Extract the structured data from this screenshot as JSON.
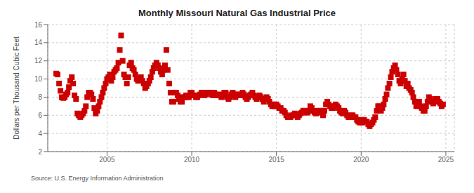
{
  "chart_data": {
    "type": "scatter",
    "title": "Monthly Missouri Natural Gas Industrial Price",
    "y_label": "Dollars per Thousand Cubic Feet",
    "annotations": [
      "Source: U.S. Energy Information Administration"
    ],
    "color": "#CC0000",
    "marker": "square",
    "grid": true,
    "xlim": [
      2001.5,
      2025.5
    ],
    "xticks": [
      2005,
      2010,
      2015,
      2020,
      2025
    ],
    "ylim": [
      2,
      16
    ],
    "yticks": [
      2,
      4,
      6,
      8,
      10,
      12,
      14,
      16
    ],
    "x": [
      2002.0,
      2002.08,
      2002.17,
      2002.25,
      2002.33,
      2002.42,
      2002.5,
      2002.58,
      2002.67,
      2002.75,
      2002.83,
      2002.92,
      2003.0,
      2003.08,
      2003.17,
      2003.25,
      2003.33,
      2003.42,
      2003.5,
      2003.58,
      2003.67,
      2003.75,
      2003.83,
      2003.92,
      2004.0,
      2004.08,
      2004.17,
      2004.25,
      2004.33,
      2004.42,
      2004.5,
      2004.58,
      2004.67,
      2004.75,
      2004.83,
      2004.92,
      2005.0,
      2005.08,
      2005.17,
      2005.25,
      2005.33,
      2005.42,
      2005.5,
      2005.58,
      2005.67,
      2005.75,
      2005.83,
      2005.92,
      2006.0,
      2006.08,
      2006.17,
      2006.25,
      2006.33,
      2006.42,
      2006.5,
      2006.58,
      2006.67,
      2006.75,
      2006.83,
      2006.92,
      2007.0,
      2007.08,
      2007.17,
      2007.25,
      2007.33,
      2007.42,
      2007.5,
      2007.58,
      2007.67,
      2007.75,
      2007.83,
      2007.92,
      2008.0,
      2008.08,
      2008.17,
      2008.25,
      2008.33,
      2008.42,
      2008.5,
      2008.58,
      2008.67,
      2008.75,
      2008.83,
      2008.92,
      2009.0,
      2009.08,
      2009.17,
      2009.25,
      2009.33,
      2009.42,
      2009.5,
      2009.58,
      2009.67,
      2009.75,
      2009.83,
      2009.92,
      2010.0,
      2010.08,
      2010.17,
      2010.25,
      2010.33,
      2010.42,
      2010.5,
      2010.58,
      2010.67,
      2010.75,
      2010.83,
      2010.92,
      2011.0,
      2011.08,
      2011.17,
      2011.25,
      2011.33,
      2011.42,
      2011.5,
      2011.58,
      2011.67,
      2011.75,
      2011.83,
      2011.92,
      2012.0,
      2012.08,
      2012.17,
      2012.25,
      2012.33,
      2012.42,
      2012.5,
      2012.58,
      2012.67,
      2012.75,
      2012.83,
      2012.92,
      2013.0,
      2013.08,
      2013.17,
      2013.25,
      2013.33,
      2013.42,
      2013.5,
      2013.58,
      2013.67,
      2013.75,
      2013.83,
      2013.92,
      2014.0,
      2014.08,
      2014.17,
      2014.25,
      2014.33,
      2014.42,
      2014.5,
      2014.58,
      2014.67,
      2014.75,
      2014.83,
      2014.92,
      2015.0,
      2015.08,
      2015.17,
      2015.25,
      2015.33,
      2015.42,
      2015.5,
      2015.58,
      2015.67,
      2015.75,
      2015.83,
      2015.92,
      2016.0,
      2016.08,
      2016.17,
      2016.25,
      2016.33,
      2016.42,
      2016.5,
      2016.58,
      2016.67,
      2016.75,
      2016.83,
      2016.92,
      2017.0,
      2017.08,
      2017.17,
      2017.25,
      2017.33,
      2017.42,
      2017.5,
      2017.58,
      2017.67,
      2017.75,
      2017.83,
      2017.92,
      2018.0,
      2018.08,
      2018.17,
      2018.25,
      2018.33,
      2018.42,
      2018.5,
      2018.58,
      2018.67,
      2018.75,
      2018.83,
      2018.92,
      2019.0,
      2019.08,
      2019.17,
      2019.25,
      2019.33,
      2019.42,
      2019.5,
      2019.58,
      2019.67,
      2019.75,
      2019.83,
      2019.92,
      2020.0,
      2020.08,
      2020.17,
      2020.25,
      2020.33,
      2020.42,
      2020.5,
      2020.58,
      2020.67,
      2020.75,
      2020.83,
      2020.92,
      2021.0,
      2021.08,
      2021.17,
      2021.25,
      2021.33,
      2021.42,
      2021.5,
      2021.58,
      2021.67,
      2021.75,
      2021.83,
      2021.92,
      2022.0,
      2022.08,
      2022.17,
      2022.25,
      2022.33,
      2022.42,
      2022.5,
      2022.58,
      2022.67,
      2022.75,
      2022.83,
      2022.92,
      2023.0,
      2023.08,
      2023.17,
      2023.25,
      2023.33,
      2023.42,
      2023.5,
      2023.58,
      2023.67,
      2023.75,
      2023.83,
      2023.92,
      2024.0,
      2024.08,
      2024.17,
      2024.25,
      2024.33,
      2024.42,
      2024.5,
      2024.58,
      2024.67,
      2024.75,
      2024.83
    ],
    "values": [
      10.6,
      10.5,
      9.5,
      8.7,
      8.0,
      7.9,
      8.0,
      8.3,
      8.5,
      9.1,
      9.8,
      10.2,
      9.5,
      8.2,
      7.8,
      6.2,
      6.0,
      5.8,
      6.0,
      6.2,
      6.5,
      7.0,
      8.0,
      8.5,
      8.5,
      8.3,
      7.8,
      6.8,
      6.2,
      6.5,
      7.0,
      7.5,
      8.0,
      8.5,
      9.0,
      9.5,
      10.0,
      10.2,
      10.5,
      9.8,
      10.2,
      10.8,
      11.0,
      11.2,
      11.8,
      13.2,
      14.8,
      12.0,
      10.5,
      10.2,
      9.5,
      10.2,
      11.5,
      11.8,
      11.2,
      11.0,
      10.5,
      10.0,
      9.8,
      10.0,
      10.2,
      9.8,
      9.5,
      9.0,
      9.2,
      9.5,
      9.8,
      10.2,
      10.8,
      11.2,
      11.5,
      11.8,
      11.5,
      11.2,
      10.8,
      10.5,
      11.0,
      11.5,
      13.2,
      11.0,
      9.5,
      8.5,
      7.5,
      7.5,
      8.5,
      8.5,
      8.2,
      7.8,
      7.5,
      7.5,
      8.0,
      8.0,
      8.2,
      8.0,
      8.0,
      8.5,
      8.5,
      8.2,
      8.2,
      8.0,
      8.0,
      8.2,
      8.3,
      8.5,
      8.5,
      8.2,
      8.3,
      8.5,
      8.5,
      8.5,
      8.3,
      8.2,
      8.5,
      8.3,
      8.2,
      8.2,
      8.3,
      8.0,
      8.2,
      8.5,
      8.5,
      8.0,
      7.8,
      8.0,
      8.3,
      8.5,
      8.2,
      8.0,
      8.3,
      8.3,
      8.2,
      8.2,
      8.5,
      8.3,
      8.0,
      7.8,
      8.0,
      8.2,
      8.3,
      8.5,
      8.2,
      8.0,
      7.8,
      8.0,
      8.2,
      8.0,
      7.8,
      7.5,
      7.8,
      8.0,
      7.8,
      7.5,
      7.2,
      7.0,
      7.2,
      7.0,
      7.2,
      7.0,
      6.8,
      6.8,
      6.5,
      6.5,
      6.3,
      6.0,
      5.8,
      5.8,
      5.8,
      6.0,
      6.0,
      6.2,
      6.0,
      5.8,
      6.0,
      6.2,
      6.3,
      6.5,
      6.5,
      6.3,
      6.3,
      6.5,
      7.0,
      6.8,
      6.5,
      6.3,
      6.2,
      6.3,
      6.5,
      6.5,
      6.3,
      6.0,
      6.5,
      7.2,
      7.5,
      7.2,
      7.0,
      6.8,
      6.8,
      7.0,
      7.2,
      7.0,
      6.8,
      6.5,
      6.3,
      6.2,
      6.5,
      6.3,
      6.0,
      5.8,
      5.8,
      6.0,
      6.0,
      5.8,
      5.8,
      5.5,
      5.3,
      5.2,
      5.5,
      5.2,
      5.5,
      5.3,
      5.3,
      5.0,
      4.8,
      5.0,
      5.2,
      5.5,
      5.8,
      6.5,
      7.0,
      7.0,
      6.5,
      6.8,
      7.2,
      7.8,
      8.3,
      9.0,
      9.5,
      10.2,
      10.8,
      11.2,
      11.5,
      11.0,
      10.5,
      9.8,
      9.5,
      10.0,
      10.5,
      9.8,
      9.2,
      9.5,
      9.0,
      8.8,
      8.5,
      8.0,
      7.5,
      7.0,
      7.2,
      7.5,
      7.0,
      6.8,
      6.5,
      6.5,
      7.0,
      7.5,
      8.0,
      7.8,
      7.5,
      7.3,
      7.5,
      7.8,
      7.8,
      7.5,
      7.3,
      7.0,
      7.2
    ]
  }
}
